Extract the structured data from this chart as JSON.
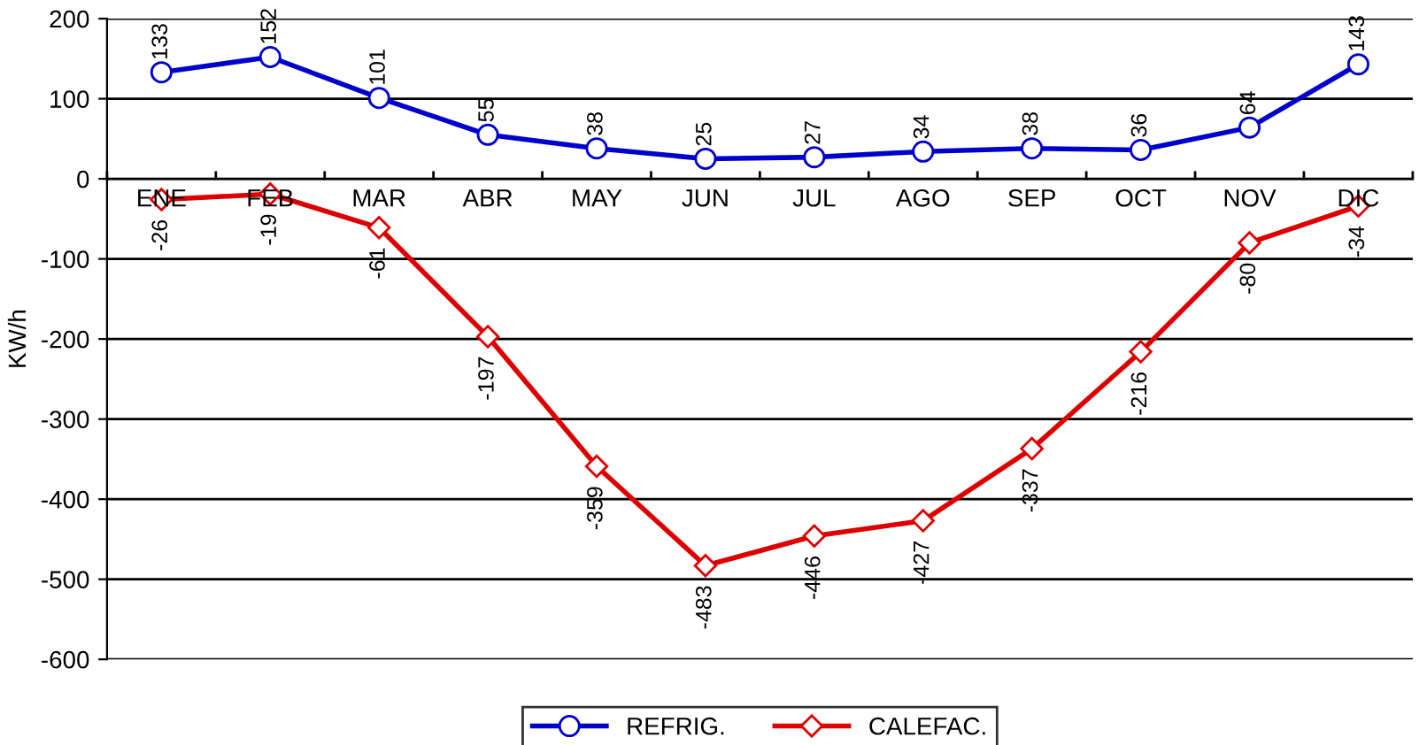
{
  "chart_data": {
    "type": "line",
    "ylabel": "KW/h",
    "categories": [
      "ENE",
      "FEB",
      "MAR",
      "ABR",
      "MAY",
      "JUN",
      "JUL",
      "AGO",
      "SEP",
      "OCT",
      "NOV",
      "DIC"
    ],
    "series": [
      {
        "name": "REFRIG.",
        "color": "#0000cc",
        "marker": "circle",
        "values": [
          133,
          152,
          101,
          55,
          38,
          25,
          27,
          34,
          38,
          36,
          64,
          143
        ]
      },
      {
        "name": "CALEFAC.",
        "color": "#dd0000",
        "marker": "diamond",
        "values": [
          -26,
          -19,
          -61,
          -197,
          -359,
          -483,
          -446,
          -427,
          -337,
          -216,
          -80,
          -34
        ]
      }
    ],
    "ylim": [
      -600,
      200
    ],
    "yticks": [
      -600,
      -500,
      -400,
      -300,
      -200,
      -100,
      0,
      100,
      200
    ],
    "grid": "y",
    "legend": "bottom",
    "data_labels": true,
    "line_style": "solid"
  }
}
